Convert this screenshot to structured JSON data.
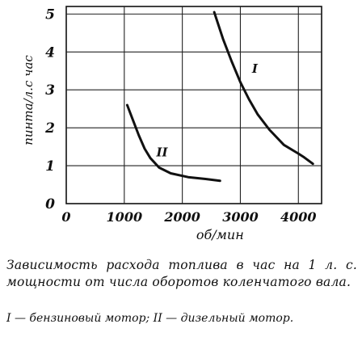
{
  "chart_data": {
    "type": "line",
    "title": "",
    "xlabel": "об/мин",
    "ylabel": "пинта/л.с час",
    "xlim": [
      0,
      4400
    ],
    "ylim": [
      0,
      5.2
    ],
    "x_ticks": [
      0,
      1000,
      2000,
      3000,
      4000
    ],
    "x_tick_labels": [
      "0",
      "1000",
      "2000",
      "3000",
      "4000"
    ],
    "y_ticks": [
      0,
      1,
      2,
      3,
      4,
      5
    ],
    "y_tick_labels": [
      "0",
      "1",
      "2",
      "3",
      "4",
      "5"
    ],
    "grid": true,
    "series": [
      {
        "name": "I",
        "x": [
          2550,
          2700,
          2850,
          3000,
          3150,
          3300,
          3500,
          3750,
          4000,
          4100,
          4250
        ],
        "y": [
          5.05,
          4.35,
          3.75,
          3.2,
          2.75,
          2.35,
          1.95,
          1.55,
          1.32,
          1.22,
          1.05
        ]
      },
      {
        "name": "II",
        "x": [
          1050,
          1150,
          1250,
          1350,
          1450,
          1600,
          1800,
          2100,
          2400,
          2650
        ],
        "y": [
          2.6,
          2.2,
          1.8,
          1.45,
          1.2,
          0.95,
          0.8,
          0.7,
          0.65,
          0.6
        ]
      }
    ]
  },
  "caption": {
    "text": "Зависимость расхода топлива в час на 1 л. с. мощности от числа оборотов коленчатого вала.",
    "legend": "I — бензиновый мотор; II — дизельный мотор."
  }
}
